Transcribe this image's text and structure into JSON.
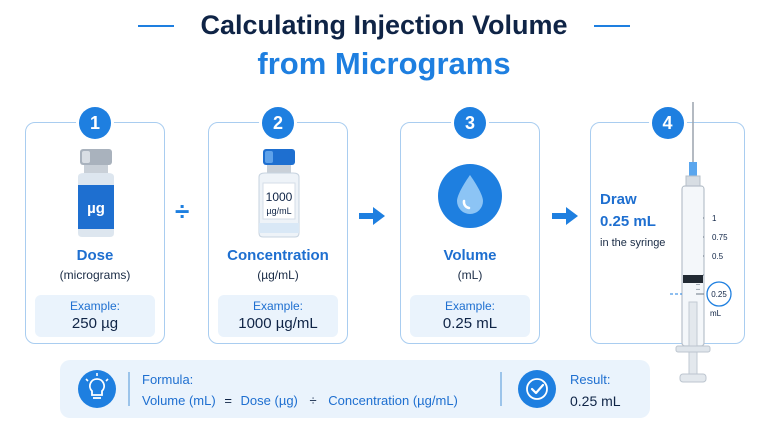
{
  "title": {
    "line1": "Calculating Injection Volume",
    "line2": "from Micrograms"
  },
  "steps": [
    {
      "number": "1",
      "vial_label": "µg",
      "title": "Dose",
      "subtitle": "(micrograms)",
      "example_label": "Example:",
      "example_value": "250 µg"
    },
    {
      "number": "2",
      "vial_label": "1000",
      "vial_unit": "µg/mL",
      "title": "Concentration",
      "subtitle": "(µg/mL)",
      "example_label": "Example:",
      "example_value": "1000 µg/mL"
    },
    {
      "number": "3",
      "title": "Volume",
      "subtitle": "(mL)",
      "example_label": "Example:",
      "example_value": "0.25 mL"
    },
    {
      "number": "4",
      "draw_label": "Draw",
      "draw_value": "0.25 mL",
      "draw_sub": "in the syringe",
      "syringe_ticks": [
        "1",
        "0.75",
        "0.5",
        "0.25"
      ],
      "syringe_unit": "mL",
      "fill_fraction": 0.25
    }
  ],
  "operators": {
    "divide": "÷"
  },
  "formula": {
    "label": "Formula:",
    "lhs": "Volume (mL)",
    "equals": "=",
    "dose": "Dose (µg)",
    "divide": "÷",
    "concentration": "Concentration (µg/mL)"
  },
  "result": {
    "label": "Result:",
    "value": "0.25 mL"
  },
  "colors": {
    "accent": "#1e7fe0",
    "navy": "#0f2446",
    "panel": "#eaf3fc",
    "border": "#a9cdf0"
  }
}
